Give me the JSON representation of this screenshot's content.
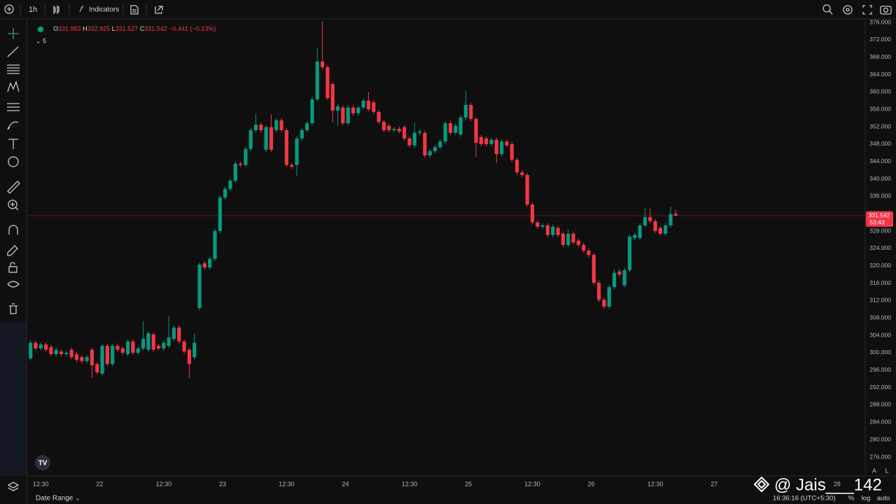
{
  "toolbar": {
    "interval": "1h",
    "indicators": "Indicators"
  },
  "legend": {
    "items": [
      {
        "key": "O",
        "value": "331.983"
      },
      {
        "key": "H",
        "value": "332.925"
      },
      {
        "key": "L",
        "value": "331.527"
      },
      {
        "key": "C",
        "value": "331.542"
      }
    ],
    "change": "−0.441 (−0.13%)",
    "indicator_count": "5"
  },
  "price_label": {
    "price": "331.542",
    "countdown": "53:43"
  },
  "footer": {
    "date_range": "Date Range",
    "clock": "16:36:16 (UTC+5:30)",
    "percent": "%",
    "log": "log",
    "auto": "auto",
    "scale_a": "A",
    "scale_l": "L",
    "watermark": "@ Jais___142"
  },
  "chart_data": {
    "type": "candlestick",
    "up_color": "#089981",
    "down_color": "#f23645",
    "grid": false,
    "xlim": [
      -0.5,
      163
    ],
    "ylim": [
      276,
      376
    ],
    "xticks": [
      {
        "value": 2,
        "label": "12:30"
      },
      {
        "value": 13.5,
        "label": "22"
      },
      {
        "value": 26,
        "label": "12:30"
      },
      {
        "value": 37.5,
        "label": "23"
      },
      {
        "value": 50,
        "label": "12:30"
      },
      {
        "value": 61.5,
        "label": "24"
      },
      {
        "value": 74,
        "label": "12:30"
      },
      {
        "value": 85.5,
        "label": "25"
      },
      {
        "value": 98,
        "label": "12:30"
      },
      {
        "value": 109.5,
        "label": "26"
      },
      {
        "value": 122,
        "label": "12:30"
      },
      {
        "value": 133.5,
        "label": "27"
      },
      {
        "value": 157.5,
        "label": "28"
      }
    ],
    "yticks": [
      {
        "value": 276,
        "label": "276.000"
      },
      {
        "value": 280,
        "label": "280.000"
      },
      {
        "value": 284,
        "label": "284.000"
      },
      {
        "value": 288,
        "label": "288.000"
      },
      {
        "value": 292,
        "label": "292.000"
      },
      {
        "value": 296,
        "label": "296.000"
      },
      {
        "value": 300,
        "label": "300.000"
      },
      {
        "value": 304,
        "label": "304.000"
      },
      {
        "value": 308,
        "label": "308.000"
      },
      {
        "value": 312,
        "label": "312.000"
      },
      {
        "value": 316,
        "label": "316.000"
      },
      {
        "value": 320,
        "label": "320.000"
      },
      {
        "value": 324,
        "label": "324.000"
      },
      {
        "value": 328,
        "label": "328.000"
      },
      {
        "value": 332,
        "label": "332.000"
      },
      {
        "value": 336,
        "label": "336.000"
      },
      {
        "value": 340,
        "label": "340.000"
      },
      {
        "value": 344,
        "label": "344.000"
      },
      {
        "value": 348,
        "label": "348.000"
      },
      {
        "value": 352,
        "label": "352.000"
      },
      {
        "value": 356,
        "label": "356.000"
      },
      {
        "value": 360,
        "label": "360.000"
      },
      {
        "value": 364,
        "label": "364.000"
      },
      {
        "value": 368,
        "label": "368.000"
      },
      {
        "value": 372,
        "label": "372.000"
      },
      {
        "value": 376,
        "label": "376.000"
      }
    ],
    "open": [
      298.7,
      302.3,
      301.0,
      301.9,
      301.3,
      299.7,
      300.3,
      299.7,
      300.7,
      299.7,
      299.0,
      298.1,
      300.7,
      297.4,
      295.2,
      301.6,
      297.4,
      301.6,
      301.0,
      299.7,
      302.6,
      300.0,
      301.0,
      300.7,
      304.2,
      301.6,
      301.0,
      301.6,
      303.2,
      305.8,
      302.6,
      300.7,
      299.0,
      310.3,
      320.6,
      319.6,
      321.6,
      328.0,
      335.7,
      337.7,
      339.6,
      343.5,
      343.2,
      346.9,
      351.2,
      352.5,
      346.7,
      351.9,
      351.2,
      353.5,
      351.2,
      343.2,
      343.2,
      349.3,
      351.2,
      352.8,
      358.3,
      367.0,
      365.7,
      361.8,
      355.7,
      356.4,
      352.8,
      356.4,
      355.1,
      356.4,
      358.0,
      357.6,
      355.4,
      353.1,
      352.2,
      351.2,
      351.5,
      351.9,
      349.3,
      347.7,
      350.6,
      350.6,
      345.4,
      346.4,
      347.3,
      348.6,
      352.8,
      350.6,
      350.2,
      354.1,
      357.0,
      353.8,
      349.6,
      349.3,
      348.0,
      349.0,
      345.7,
      348.6,
      348.0,
      344.4,
      341.5,
      340.9,
      334.1,
      330.0,
      329.0,
      329.3,
      327.1,
      328.7,
      327.4,
      324.8,
      327.4,
      325.8,
      324.8,
      323.5,
      322.5,
      316.1,
      312.2,
      310.6,
      315.1,
      318.7,
      315.5,
      319.0,
      326.4,
      326.4,
      329.3,
      331.2,
      330.3,
      328.7,
      327.4,
      329.3,
      331.983
    ],
    "high": [
      302.8,
      302.8,
      302.4,
      302.4,
      301.8,
      301.2,
      300.8,
      300.5,
      301.2,
      300.2,
      299.5,
      299.5,
      301.2,
      297.9,
      302.1,
      302.1,
      302.1,
      302.1,
      301.5,
      303.1,
      303.1,
      301.5,
      307.3,
      305.0,
      304.7,
      302.1,
      302.8,
      308.4,
      306.3,
      306.3,
      303.1,
      301.2,
      304.3,
      320.8,
      321.1,
      322.1,
      328.5,
      336.2,
      338.2,
      340.1,
      344.0,
      344.0,
      347.4,
      351.7,
      355.0,
      353.0,
      352.4,
      354.9,
      354.0,
      354.0,
      351.7,
      343.7,
      349.8,
      351.7,
      353.3,
      358.8,
      370.0,
      376.3,
      366.2,
      362.3,
      357.2,
      356.9,
      356.9,
      356.9,
      356.9,
      358.5,
      360.0,
      358.1,
      355.9,
      353.6,
      352.7,
      352.0,
      352.0,
      352.4,
      349.8,
      352.9,
      351.4,
      351.1,
      346.9,
      347.8,
      349.1,
      353.3,
      353.3,
      352.7,
      354.6,
      360.2,
      357.5,
      354.3,
      350.1,
      349.8,
      349.5,
      349.5,
      349.1,
      349.1,
      348.5,
      344.9,
      342.0,
      341.4,
      334.6,
      330.5,
      329.8,
      329.8,
      329.5,
      329.2,
      327.9,
      328.4,
      327.9,
      326.3,
      325.3,
      324.0,
      323.0,
      316.6,
      312.7,
      315.6,
      319.3,
      319.2,
      319.5,
      327.2,
      327.6,
      329.8,
      333.2,
      333.2,
      330.8,
      329.2,
      329.8,
      333.6,
      332.925
    ],
    "low": [
      298.2,
      300.5,
      300.5,
      300.2,
      299.2,
      299.2,
      299.2,
      299.2,
      298.5,
      297.9,
      297.6,
      297.6,
      294.2,
      295.0,
      294.7,
      296.9,
      296.9,
      300.2,
      299.5,
      299.2,
      299.5,
      299.5,
      300.5,
      300.2,
      300.2,
      300.5,
      300.5,
      301.1,
      302.7,
      302.1,
      299.8,
      294.2,
      298.5,
      309.7,
      319.1,
      319.1,
      321.1,
      327.5,
      335.2,
      337.2,
      339.1,
      342.7,
      342.7,
      346.4,
      350.7,
      350.7,
      346.2,
      346.2,
      350.7,
      350.7,
      342.7,
      342.3,
      340.6,
      348.8,
      350.7,
      352.3,
      357.8,
      365.2,
      358.1,
      353.0,
      352.2,
      352.3,
      352.3,
      354.6,
      354.6,
      355.9,
      355.5,
      354.9,
      352.6,
      350.7,
      350.7,
      350.7,
      350.4,
      348.8,
      347.2,
      347.2,
      350.1,
      344.9,
      344.9,
      345.9,
      346.8,
      348.1,
      350.1,
      350.1,
      349.7,
      353.6,
      353.3,
      345.1,
      347.5,
      347.5,
      347.5,
      343.6,
      345.2,
      347.2,
      343.9,
      341.0,
      340.4,
      333.6,
      329.5,
      328.5,
      328.5,
      326.6,
      326.6,
      326.6,
      324.3,
      324.3,
      324.9,
      324.3,
      323.0,
      322.0,
      315.6,
      311.7,
      310.1,
      310.1,
      314.6,
      317.5,
      315.0,
      318.5,
      325.9,
      325.9,
      328.8,
      329.8,
      327.5,
      326.9,
      326.9,
      328.8,
      331.527
    ],
    "close": [
      302.3,
      301.0,
      301.9,
      300.7,
      299.7,
      300.7,
      299.7,
      300.0,
      299.0,
      298.4,
      298.1,
      299.0,
      297.1,
      295.5,
      301.6,
      297.4,
      301.6,
      300.7,
      300.0,
      302.6,
      300.0,
      301.0,
      303.2,
      304.5,
      300.7,
      301.0,
      302.3,
      303.5,
      305.8,
      302.6,
      300.3,
      297.4,
      302.3,
      320.3,
      319.6,
      321.6,
      328.0,
      335.7,
      337.7,
      339.6,
      343.5,
      343.2,
      346.9,
      351.2,
      352.5,
      351.2,
      351.9,
      346.7,
      353.5,
      351.2,
      343.2,
      342.8,
      349.3,
      351.2,
      352.8,
      358.3,
      367.0,
      365.7,
      358.6,
      355.7,
      356.7,
      352.8,
      356.4,
      355.1,
      356.4,
      358.0,
      356.0,
      355.4,
      353.1,
      351.2,
      351.2,
      351.5,
      350.9,
      349.3,
      347.7,
      350.6,
      350.9,
      345.4,
      346.4,
      347.3,
      348.6,
      352.8,
      350.6,
      352.2,
      354.1,
      357.0,
      353.8,
      348.3,
      348.0,
      348.0,
      349.0,
      345.7,
      348.6,
      347.7,
      344.4,
      341.5,
      340.9,
      334.1,
      330.0,
      329.0,
      329.3,
      327.1,
      329.0,
      327.1,
      324.8,
      327.4,
      325.4,
      324.8,
      323.5,
      322.5,
      316.1,
      312.2,
      310.6,
      315.1,
      318.4,
      318.0,
      319.0,
      326.7,
      327.1,
      329.3,
      331.2,
      330.3,
      328.0,
      327.4,
      329.3,
      331.9,
      331.542
    ]
  }
}
